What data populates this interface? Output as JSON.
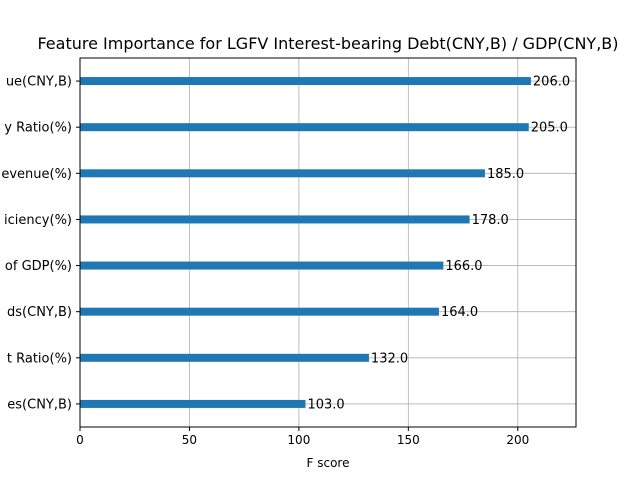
{
  "chart_data": {
    "type": "bar",
    "orientation": "horizontal",
    "title": "Feature Importance for LGFV Interest-bearing Debt(CNY,B) / GDP(CNY,B)",
    "xlabel": "F score",
    "ylabel": "",
    "xlim": [
      0,
      226.6
    ],
    "xticks": [
      0,
      50,
      100,
      150,
      200
    ],
    "grid": true,
    "bar_color": "#1f77b4",
    "categories": [
      "ue(CNY,B)",
      "y Ratio(%)",
      "evenue(%)",
      "iciency(%)",
      "of GDP(%)",
      "ds(CNY,B)",
      "t Ratio(%)",
      "es(CNY,B)"
    ],
    "values": [
      206,
      205,
      185,
      178,
      166,
      164,
      132,
      103
    ],
    "value_labels": [
      "206.0",
      "205.0",
      "185.0",
      "178.0",
      "166.0",
      "164.0",
      "132.0",
      "103.0"
    ]
  }
}
